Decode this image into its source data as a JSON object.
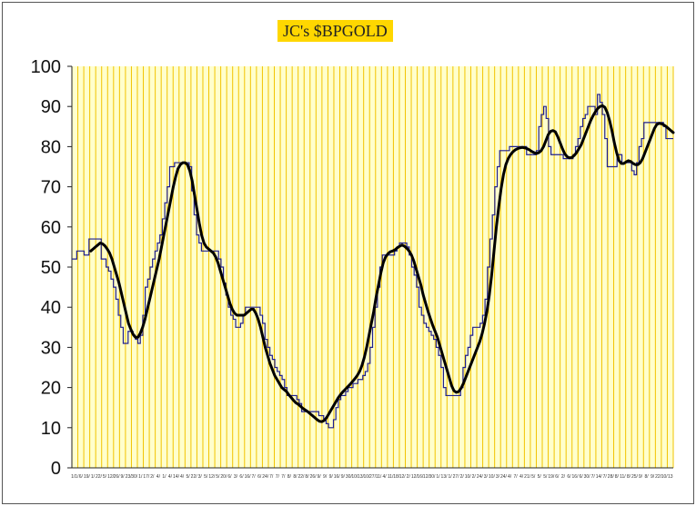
{
  "chart_data": {
    "type": "line",
    "title": "JC's $BPGOLD",
    "ylim": [
      0,
      100
    ],
    "y_ticks": [
      "0",
      "10",
      "20",
      "30",
      "40",
      "50",
      "60",
      "70",
      "80",
      "90",
      "100"
    ],
    "grid": "vertical",
    "colors": {
      "plot_background": "#FFFFCC",
      "grid": "#F2C300",
      "title_background": "#FFD700",
      "raw_series": "#1F1F8F",
      "smooth_series": "#000000"
    },
    "x_tick_labels": [
      "1/1/",
      "6/",
      "19/",
      "1/",
      "22/",
      "5/",
      "12/",
      "26/",
      "9/",
      "23/",
      "30/",
      "1/",
      "17/",
      "2/",
      "4/",
      "1/",
      "4/",
      "14/",
      "4/",
      "5/",
      "22/",
      "3/",
      "5/",
      "12/",
      "5/",
      "20/",
      "6/",
      "3/",
      "6/",
      "16/",
      "7/",
      "6/",
      "24/",
      "7/",
      "7/",
      "7/",
      "8/",
      "8/",
      "22/",
      "8/",
      "26/",
      "9/",
      "9/",
      "9/",
      "16/",
      "9/",
      "30/",
      "10/",
      "13/",
      "10/",
      "27/",
      "11/",
      "4/",
      "11/",
      "18/",
      "12/",
      "2/",
      "12/",
      "16/",
      "12/",
      "30/",
      "1/",
      "13/",
      "1/",
      "27/",
      "2/",
      "10/",
      "2/",
      "24/",
      "3/",
      "10/",
      "3/",
      "24/",
      "4/",
      "7/",
      "4/",
      "21/",
      "5/",
      "5/",
      "5/",
      "19/",
      "6/",
      "2/",
      "6/",
      "16/",
      "6/",
      "30/",
      "7/",
      "14/",
      "7/",
      "28/",
      "8/",
      "11/",
      "8/",
      "25/",
      "9/",
      "8/",
      "9/",
      "22/",
      "10/",
      "13"
    ],
    "series": [
      {
        "values": [
          52,
          52,
          54,
          54,
          54,
          53,
          53,
          57,
          57,
          57,
          57,
          57,
          52,
          52,
          50,
          49,
          47,
          45,
          42,
          38,
          35,
          31,
          31,
          34,
          34,
          33,
          32,
          31,
          33,
          38,
          45,
          47,
          50,
          52,
          54,
          56,
          58,
          62,
          66,
          70,
          75,
          75,
          76,
          76,
          76,
          76,
          76,
          76,
          75,
          69,
          63,
          58,
          56,
          54,
          54,
          54,
          54,
          54,
          54,
          54,
          52,
          50,
          46,
          43,
          40,
          38,
          37,
          35,
          35,
          36,
          38,
          40,
          40,
          40,
          40,
          40,
          40,
          38,
          36,
          32,
          30,
          28,
          27,
          25,
          24,
          23,
          22,
          20,
          18,
          18,
          18,
          18,
          17,
          16,
          14,
          14,
          14,
          14,
          14,
          14,
          14,
          13,
          13,
          12,
          11,
          10,
          10,
          12,
          15,
          17,
          18,
          18,
          19,
          20,
          20,
          21,
          21,
          22,
          22,
          23,
          24,
          26,
          30,
          35,
          40,
          45,
          50,
          53,
          53,
          53,
          53,
          53,
          54,
          55,
          56,
          56,
          56,
          55,
          53,
          50,
          48,
          45,
          40,
          38,
          36,
          35,
          34,
          33,
          32,
          30,
          28,
          25,
          20,
          18,
          18,
          18,
          18,
          18,
          18,
          20,
          25,
          28,
          30,
          33,
          35,
          35,
          35,
          36,
          38,
          42,
          50,
          57,
          63,
          70,
          75,
          79,
          79,
          79,
          79,
          80,
          80,
          80,
          80,
          80,
          80,
          80,
          78,
          78,
          78,
          78,
          79,
          85,
          88,
          90,
          87,
          80,
          78,
          78,
          78,
          78,
          78,
          77,
          77,
          77,
          77,
          78,
          80,
          82,
          85,
          87,
          88,
          90,
          90,
          90,
          88,
          93,
          91,
          88,
          82,
          75,
          75,
          75,
          75,
          78,
          78,
          76,
          76,
          76,
          76,
          74,
          73,
          76,
          80,
          82,
          86,
          86,
          86,
          86,
          86,
          86,
          86,
          86,
          85,
          82,
          82,
          82,
          82
        ],
        "color": "#1F1F8F"
      },
      {
        "values": [
          null,
          null,
          null,
          null,
          null,
          null,
          null,
          null,
          54,
          54.5,
          55,
          55.5,
          56,
          55.8,
          55.3,
          54.5,
          53.5,
          52,
          50,
          48,
          46,
          43.5,
          41,
          38.5,
          36,
          34.5,
          33.2,
          32.5,
          32.5,
          33.5,
          35,
          37,
          39.5,
          42,
          44.5,
          47,
          49.5,
          52,
          55,
          58,
          61,
          64,
          67,
          70,
          72.5,
          74.5,
          75.5,
          76,
          76,
          75.5,
          74,
          71.5,
          68,
          64.5,
          61,
          58,
          56,
          55,
          54.5,
          54,
          53.5,
          52.5,
          51,
          49,
          47,
          45,
          43,
          41,
          39.5,
          38.5,
          38,
          38,
          38,
          38,
          38.5,
          39,
          39.5,
          39.5,
          38.5,
          37,
          35,
          32.5,
          30,
          28,
          26,
          24.5,
          23,
          22,
          21,
          20,
          19.5,
          19,
          18.2,
          17.5,
          16.8,
          16.2,
          15.8,
          15.3,
          14.8,
          14.4,
          14,
          13.5,
          13,
          12.5,
          12,
          11.6,
          11.5,
          11.8,
          12.5,
          13.5,
          14.5,
          15.5,
          16.5,
          17.5,
          18.3,
          19,
          19.6,
          20.2,
          20.8,
          21.5,
          22.2,
          23,
          24,
          25.5,
          27.5,
          30,
          33,
          36,
          39,
          42.5,
          45.5,
          48.5,
          51,
          52.5,
          53.3,
          53.8,
          54,
          54.3,
          54.8,
          55.2,
          55.5,
          55.2,
          54.7,
          54,
          53,
          51.5,
          49.5,
          47.5,
          45.5,
          43,
          41,
          39,
          37.2,
          35.5,
          34,
          32.5,
          30.5,
          28.5,
          26.5,
          24.5,
          22.5,
          20.5,
          19.2,
          18.8,
          19,
          19.8,
          21,
          22.5,
          24,
          25.5,
          27,
          28.5,
          30,
          31.5,
          33.5,
          36,
          39,
          43,
          48,
          54,
          60,
          65,
          69.5,
          73,
          75.5,
          77,
          78,
          78.7,
          79.2,
          79.5,
          79.7,
          79.8,
          79.7,
          79.5,
          79.2,
          78.8,
          78.5,
          78.3,
          78.5,
          79,
          80,
          81.5,
          83,
          83.8,
          84,
          83.7,
          82.5,
          81,
          79.5,
          78.2,
          77.5,
          77.2,
          77.3,
          77.8,
          78.5,
          79.5,
          80.5,
          82,
          83.5,
          85,
          86.5,
          87.7,
          88.7,
          89.5,
          90,
          90.2,
          89.8,
          88.5,
          86.5,
          84,
          81,
          78.5,
          76.5,
          75.8,
          75.8,
          76.2,
          76.5,
          76.3,
          75.8,
          75.5,
          75.5,
          76,
          77,
          78.5,
          80,
          81.5,
          83,
          84.5,
          85.5,
          85.8,
          85.7,
          85.4,
          85,
          84.5,
          84,
          83.5
        ]
      }
    ]
  }
}
